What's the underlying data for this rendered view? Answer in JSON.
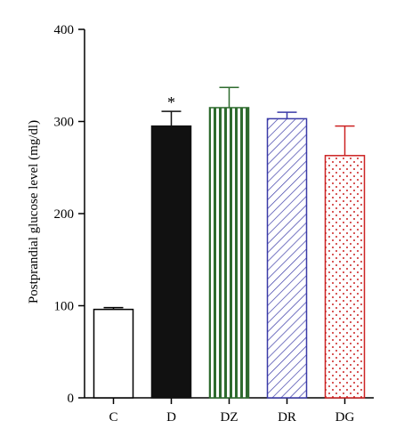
{
  "chart_data": {
    "type": "bar",
    "title": "",
    "xlabel": "",
    "ylabel": "Postprandial glucose level (mg/dl)",
    "ylim": [
      0,
      400
    ],
    "yticks": [
      "0",
      "100",
      "200",
      "300",
      "400"
    ],
    "grid": false,
    "categories": [
      "C",
      "D",
      "DZ",
      "DR",
      "DG"
    ],
    "values": [
      96,
      295,
      315,
      303,
      263
    ],
    "errors": [
      2,
      16,
      22,
      7,
      32
    ],
    "bar_styles": [
      {
        "fill": "none",
        "color": "#000000"
      },
      {
        "fill": "solid",
        "color": "#111111"
      },
      {
        "fill": "vertical-stripes",
        "color": "#2e6b2e"
      },
      {
        "fill": "diagonal-hatch",
        "color": "#3b3ba8"
      },
      {
        "fill": "dots",
        "color": "#cc2222"
      }
    ],
    "annotations": [
      {
        "category": "D",
        "text": "*"
      }
    ]
  }
}
